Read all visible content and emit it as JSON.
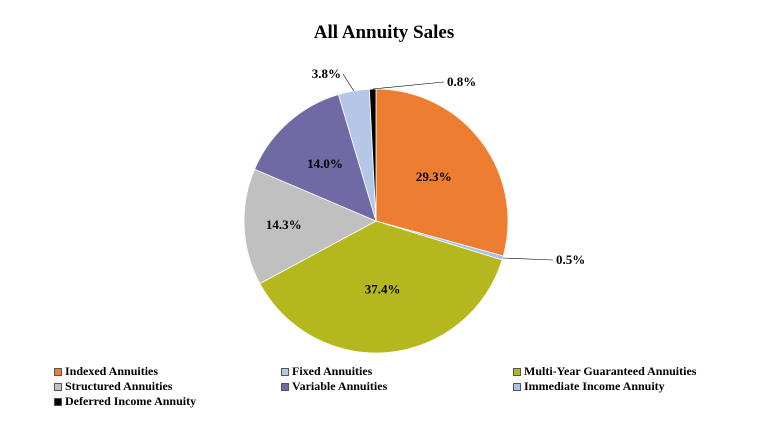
{
  "chart_data": {
    "type": "pie",
    "title": "All Annuity Sales",
    "slices": [
      {
        "name": "Indexed Annuities",
        "value": 29.3,
        "label": "29.3%",
        "color": "#ed7d31"
      },
      {
        "name": "Immediate Income Annuity",
        "value": 0.5,
        "label": "0.5%",
        "color": "#a9c4e8"
      },
      {
        "name": "Multi-Year Guaranteed Annuities",
        "value": 37.4,
        "label": "37.4%",
        "color": "#b5b81c"
      },
      {
        "name": "Structured Annuities",
        "value": 14.3,
        "label": "14.3%",
        "color": "#c0c0c0"
      },
      {
        "name": "Variable Annuities",
        "value": 14.0,
        "label": "14.0%",
        "color": "#6f6aa3"
      },
      {
        "name": "Fixed Annuities",
        "value": 3.8,
        "label": "3.8%",
        "color": "#b4c7e7"
      },
      {
        "name": "Deferred Income Annuity",
        "value": 0.8,
        "label": "0.8%",
        "color": "#000000"
      }
    ],
    "legend": {
      "placement": "bottom",
      "items": [
        {
          "label": "Indexed Annuities",
          "color": "#ed7d31"
        },
        {
          "label": "Fixed Annuities",
          "color": "#b4c7e7"
        },
        {
          "label": "Multi-Year Guaranteed Annuities",
          "color": "#b5b81c"
        },
        {
          "label": "Structured Annuities",
          "color": "#c0c0c0"
        },
        {
          "label": "Variable Annuities",
          "color": "#6f6aa3"
        },
        {
          "label": "Immediate Income Annuity",
          "color": "#a9c4e8"
        },
        {
          "label": "Deferred Income Annuity",
          "color": "#000000"
        }
      ]
    }
  }
}
